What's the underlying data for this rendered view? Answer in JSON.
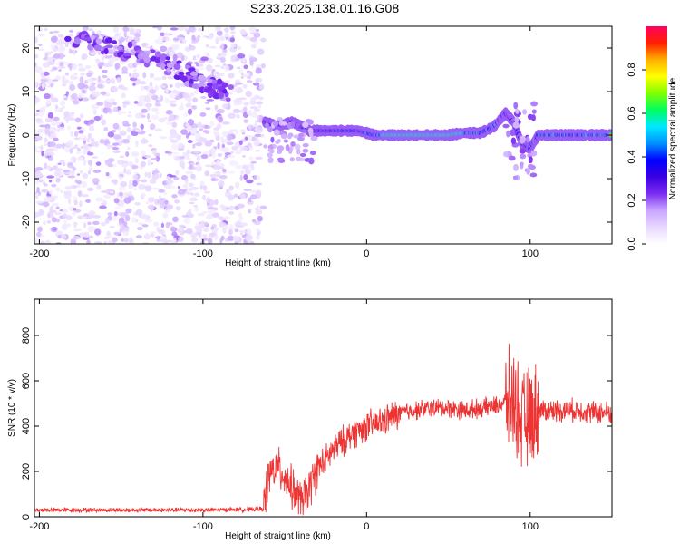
{
  "page_title": "S233.2025.138.01.16.G08",
  "chart_data": [
    {
      "type": "heatmap",
      "panel": "spectrogram",
      "xlabel": "Height of straight line (km)",
      "ylabel": "Frequency (Hz)",
      "xlim": [
        -203,
        150
      ],
      "ylim": [
        -25,
        25
      ],
      "xticks": [
        -200,
        -100,
        0,
        100
      ],
      "yticks": [
        -20,
        -10,
        0,
        10,
        20
      ],
      "colorbar": {
        "label": "Normalized spectral amplitude",
        "range": [
          0,
          1
        ],
        "ticks": [
          0,
          0.2,
          0.4,
          0.6,
          0.8
        ],
        "tick_labels": [
          "0.0",
          "0.2",
          "0.4",
          "0.6",
          "0.8"
        ],
        "colormap": [
          "#ffffff",
          "#e8d8ff",
          "#c9a6ff",
          "#7b2cf0",
          "#3a00e0",
          "#0000ff",
          "#0090ff",
          "#00e8ff",
          "#00ff60",
          "#80ff00",
          "#ffff00",
          "#ffb000",
          "#ff2000",
          "#ff0060"
        ]
      },
      "features": {
        "noise_region_x": [
          -203,
          -63
        ],
        "descending_trace": [
          [
            -180,
            22
          ],
          [
            -150,
            20
          ],
          [
            -120,
            16
          ],
          [
            -100,
            12
          ],
          [
            -85,
            10
          ]
        ],
        "carrier_trace": [
          [
            -62,
            3
          ],
          [
            -55,
            2
          ],
          [
            -45,
            3
          ],
          [
            -35,
            1
          ],
          [
            -25,
            1
          ],
          [
            -15,
            1
          ],
          [
            -5,
            1
          ],
          [
            5,
            0
          ],
          [
            20,
            0
          ],
          [
            50,
            0
          ],
          [
            60,
            0.5
          ],
          [
            70,
            0.5
          ],
          [
            78,
            2
          ],
          [
            85,
            5
          ],
          [
            90,
            3
          ],
          [
            95,
            -2
          ],
          [
            100,
            -3
          ],
          [
            105,
            0
          ],
          [
            120,
            0
          ],
          [
            150,
            0
          ]
        ]
      }
    },
    {
      "type": "line",
      "panel": "snr",
      "xlabel": "Height of straight line (km)",
      "ylabel": "SNR (10 * v/v)",
      "xlim": [
        -203,
        150
      ],
      "ylim": [
        0,
        960
      ],
      "xticks": [
        -200,
        -100,
        0,
        100
      ],
      "yticks": [
        0,
        200,
        400,
        600,
        800
      ],
      "series": [
        {
          "color": "#ee3333",
          "points": [
            [
              -203,
              30
            ],
            [
              -150,
              30
            ],
            [
              -100,
              30
            ],
            [
              -70,
              32
            ],
            [
              -63,
              35
            ],
            [
              -60,
              180
            ],
            [
              -55,
              220
            ],
            [
              -50,
              180
            ],
            [
              -45,
              120
            ],
            [
              -40,
              60
            ],
            [
              -35,
              120
            ],
            [
              -30,
              220
            ],
            [
              -25,
              250
            ],
            [
              -20,
              300
            ],
            [
              -15,
              330
            ],
            [
              -10,
              360
            ],
            [
              -5,
              380
            ],
            [
              0,
              400
            ],
            [
              5,
              410
            ],
            [
              10,
              420
            ],
            [
              15,
              440
            ],
            [
              20,
              455
            ],
            [
              25,
              465
            ],
            [
              30,
              470
            ],
            [
              40,
              480
            ],
            [
              50,
              480
            ],
            [
              60,
              470
            ],
            [
              70,
              480
            ],
            [
              80,
              490
            ],
            [
              85,
              510
            ],
            [
              90,
              520
            ],
            [
              95,
              420
            ],
            [
              100,
              440
            ],
            [
              105,
              470
            ],
            [
              110,
              470
            ],
            [
              120,
              470
            ],
            [
              130,
              470
            ],
            [
              140,
              460
            ],
            [
              150,
              460
            ]
          ]
        }
      ]
    }
  ]
}
